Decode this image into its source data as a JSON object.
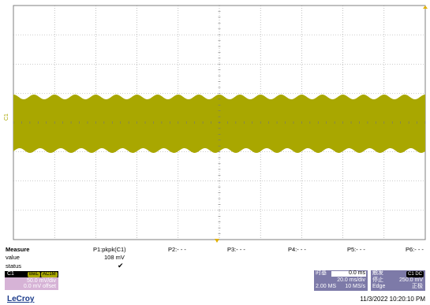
{
  "waveform_color": "#a9a700",
  "grid_color": "#9a9a9a",
  "channel_label": "C1",
  "measure": {
    "title": "Measure",
    "row_value": "value",
    "row_status": "status",
    "p1_label": "P1:pkpk(C1)",
    "p1_value": "108 mV",
    "p1_status_icon": "check-icon",
    "p2_label": "P2:- - -",
    "p3_label": "P3:- - -",
    "p4_label": "P4:- - -",
    "p5_label": "P5:- - -",
    "p6_label": "P6:- - -"
  },
  "channel_box": {
    "name": "C1",
    "bw_tag": "BwL",
    "ac_tag": "AC1M",
    "vdiv": "50.0 mV/div",
    "offset": "0.0 mV offset"
  },
  "timebase_box": {
    "title": "时基",
    "delay": "0.0 ms",
    "tdiv": "20.0 ms/div",
    "samples": "2.00 MS",
    "rate": "10 MS/s"
  },
  "trigger_box": {
    "title": "触发",
    "tag": "C1 DC",
    "mode": "停止",
    "level": "250.0 mV",
    "type": "Edge",
    "slope": "正极"
  },
  "logo": "LeCroy",
  "timestamp": "11/3/2022 10:20:10 PM"
}
